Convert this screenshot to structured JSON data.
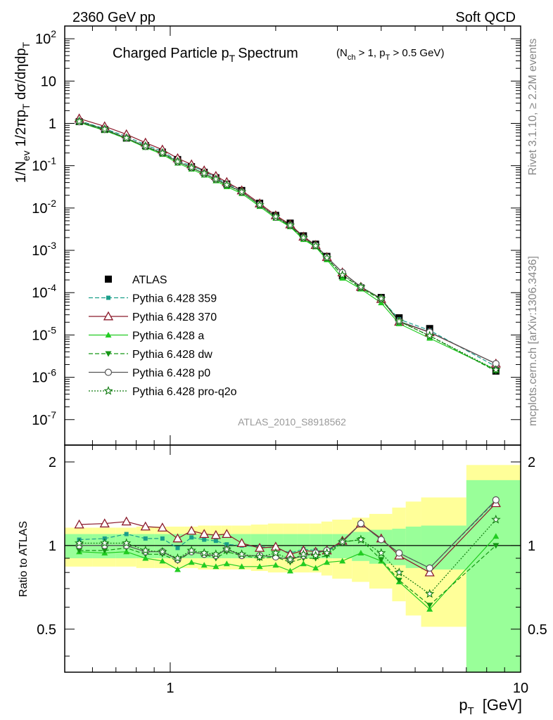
{
  "header": {
    "left": "2360 GeV pp",
    "right": "Soft QCD"
  },
  "side": {
    "top": "Rivet 3.1.10, ≥ 2.2M events",
    "bottom": "mcplots.cern.ch [arXiv:1306.3436]"
  },
  "watermark": "ATLAS_2010_S8918562",
  "colors": {
    "atlas": "#000000",
    "p359": "#1a9e8a",
    "p370": "#8b1a2b",
    "pa": "#22cc22",
    "pdw": "#149614",
    "pp0": "#555555",
    "pq2o": "#0f7a0f",
    "band_yellow": "#ffff99",
    "band_green": "#99ff99"
  },
  "chart_data": [
    {
      "type": "scatter",
      "title": "Charged Particle p_T Spectrum",
      "title_main": "Charged Particle p",
      "title_sub": "T",
      "title_tail": "Spectrum",
      "title_cut": "(N_ch > 1, p_T > 0.5 GeV)",
      "ylabel": "1/N_ev 1/2πp_T dσ/dηdp_T",
      "ylog": true,
      "ylim": [
        2.5e-08,
        200
      ],
      "xlog": true,
      "xlim": [
        0.5,
        10
      ],
      "ytick_labels": [
        "10^2",
        "10",
        "1",
        "10^-1",
        "10^-2",
        "10^-3",
        "10^-4",
        "10^-5",
        "10^-6",
        "10^-7"
      ],
      "legend_position": "lower-left",
      "x": [
        0.55,
        0.65,
        0.75,
        0.85,
        0.95,
        1.05,
        1.15,
        1.25,
        1.35,
        1.45,
        1.6,
        1.8,
        2.0,
        2.2,
        2.4,
        2.6,
        2.8,
        3.1,
        3.5,
        4.0,
        4.5,
        5.5,
        8.5
      ],
      "series": [
        {
          "name": "ATLAS",
          "key": "atlas",
          "marker": "square-filled",
          "values": [
            1.1,
            0.72,
            0.45,
            0.3,
            0.21,
            0.14,
            0.095,
            0.07,
            0.052,
            0.037,
            0.026,
            0.013,
            0.0067,
            0.0044,
            0.0022,
            0.0014,
            0.00072,
            0.00025,
            0.00013,
            7.7e-05,
            2.55e-05,
            1.42e-05,
            1.4e-06
          ]
        },
        {
          "name": "Pythia 6.428 359",
          "key": "p359",
          "marker": "square-small",
          "dash": "6,3",
          "values": [
            1.15,
            0.75,
            0.49,
            0.31,
            0.22,
            0.13,
            0.099,
            0.074,
            0.052,
            0.038,
            0.026,
            0.0128,
            0.0066,
            0.0041,
            0.0021,
            0.00135,
            0.00069,
            0.0003,
            0.000137,
            7e-05,
            2.35e-05,
            1.28e-05,
            1.8e-06
          ]
        },
        {
          "name": "Pythia 6.428 370",
          "key": "p370",
          "marker": "triangle-open",
          "values": [
            1.3,
            0.85,
            0.55,
            0.35,
            0.24,
            0.15,
            0.107,
            0.077,
            0.057,
            0.041,
            0.026,
            0.0128,
            0.0067,
            0.0041,
            0.0021,
            0.00133,
            0.00069,
            0.0003,
            0.000137,
            7.05e-05,
            2.05e-05,
            1.15e-05,
            2.1e-06
          ]
        },
        {
          "name": "Pythia 6.428 a",
          "key": "pa",
          "marker": "triangle-filled",
          "values": [
            1.05,
            0.68,
            0.43,
            0.27,
            0.185,
            0.115,
            0.083,
            0.06,
            0.044,
            0.032,
            0.022,
            0.0109,
            0.0057,
            0.0036,
            0.0018,
            0.00121,
            0.0006,
            0.00022,
            0.000122,
            5.75e-05,
            1.85e-05,
            8.4e-06,
            1.5e-06
          ]
        },
        {
          "name": "Pythia 6.428 dw",
          "key": "pdw",
          "marker": "triangle-down-filled",
          "dash": "6,3",
          "values": [
            1.06,
            0.69,
            0.44,
            0.28,
            0.195,
            0.123,
            0.09,
            0.065,
            0.047,
            0.035,
            0.024,
            0.0117,
            0.0061,
            0.0037,
            0.0019,
            0.00126,
            0.00064,
            0.00026,
            0.000128,
            6.85e-05,
            2.1e-05,
            9.5e-06,
            1.4e-06
          ]
        },
        {
          "name": "Pythia 6.428 p0",
          "key": "pp0",
          "marker": "circle-open",
          "values": [
            1.1,
            0.72,
            0.45,
            0.285,
            0.2,
            0.124,
            0.09,
            0.065,
            0.048,
            0.036,
            0.024,
            0.012,
            0.0061,
            0.0039,
            0.002,
            0.00131,
            0.00069,
            0.0003,
            0.000137,
            7.25e-05,
            2.11e-05,
            1.17e-05,
            2.1e-06
          ]
        },
        {
          "name": "Pythia 6.428 pro-q2o",
          "key": "pq2o",
          "marker": "star-open",
          "dash": "2,2",
          "values": [
            1.12,
            0.73,
            0.45,
            0.29,
            0.2,
            0.125,
            0.09,
            0.066,
            0.048,
            0.035,
            0.024,
            0.0118,
            0.0063,
            0.0039,
            0.002,
            0.00128,
            0.00066,
            0.00026,
            0.000136,
            7.25e-05,
            2.1e-05,
            9.6e-06,
            1.5e-06
          ]
        }
      ]
    },
    {
      "type": "line",
      "ylabel": "Ratio to ATLAS",
      "xlabel": "p_T [GeV]",
      "xlabel_main": "p",
      "xlabel_sub": "T",
      "xlabel_unit": "[GeV]",
      "xlog": true,
      "xlim": [
        0.5,
        10
      ],
      "ylog": true,
      "ylim": [
        0.35,
        2.3
      ],
      "ytick_labels": [
        "2",
        "1",
        "0.5"
      ],
      "xtick_labels": [
        "1",
        "10"
      ],
      "bands": {
        "x_edges": [
          0.5,
          0.6,
          0.7,
          0.8,
          0.9,
          1.0,
          1.1,
          1.2,
          1.3,
          1.4,
          1.5,
          1.7,
          1.9,
          2.1,
          2.3,
          2.5,
          2.7,
          2.9,
          3.3,
          3.7,
          4.3,
          4.7,
          5.2,
          7.0,
          10.0
        ],
        "stat_total": [
          0.1,
          0.1,
          0.1,
          0.1,
          0.1,
          0.1,
          0.1,
          0.1,
          0.1,
          0.1,
          0.1,
          0.1,
          0.1,
          0.1,
          0.1,
          0.1,
          0.1,
          0.1,
          0.12,
          0.14,
          0.15,
          0.17,
          0.18,
          0.72
        ],
        "syst_total": [
          0.16,
          0.16,
          0.16,
          0.17,
          0.17,
          0.17,
          0.17,
          0.18,
          0.18,
          0.18,
          0.18,
          0.19,
          0.2,
          0.2,
          0.2,
          0.2,
          0.22,
          0.24,
          0.26,
          0.3,
          0.37,
          0.44,
          0.49,
          0.95
        ]
      },
      "series": [
        {
          "name": "Pythia 6.428 359",
          "key": "p359",
          "values": [
            1.05,
            1.06,
            1.1,
            1.06,
            1.06,
            0.98,
            1.07,
            1.05,
            1.04,
            1.01,
            1.0,
            0.99,
            0.98,
            0.94,
            0.97,
            0.96,
            0.95,
            1.03,
            1.2,
            1.05,
            0.94,
            0.83,
            1.45
          ]
        },
        {
          "name": "Pythia 6.428 370",
          "key": "p370",
          "values": [
            1.19,
            1.2,
            1.22,
            1.17,
            1.16,
            1.06,
            1.13,
            1.1,
            1.09,
            1.1,
            1.02,
            0.98,
            0.99,
            0.93,
            0.96,
            0.95,
            0.96,
            1.04,
            1.2,
            1.06,
            0.92,
            0.8,
            1.42
          ]
        },
        {
          "name": "Pythia 6.428 a",
          "key": "pa",
          "values": [
            0.95,
            0.94,
            0.95,
            0.9,
            0.88,
            0.82,
            0.87,
            0.85,
            0.84,
            0.86,
            0.84,
            0.84,
            0.85,
            0.81,
            0.86,
            0.83,
            0.87,
            0.88,
            0.94,
            0.88,
            0.74,
            0.59,
            1.08
          ]
        },
        {
          "name": "Pythia 6.428 dw",
          "key": "pdw",
          "values": [
            0.96,
            0.96,
            0.98,
            0.93,
            0.93,
            0.88,
            0.95,
            0.93,
            0.9,
            0.95,
            0.92,
            0.9,
            0.91,
            0.87,
            0.9,
            0.9,
            0.92,
            1.03,
            1.05,
            0.89,
            0.75,
            0.61,
            1.0
          ]
        },
        {
          "name": "Pythia 6.428 p0",
          "key": "pp0",
          "values": [
            1.0,
            1.0,
            1.0,
            0.95,
            0.95,
            0.89,
            0.95,
            0.93,
            0.92,
            0.97,
            0.92,
            0.92,
            0.91,
            0.89,
            0.92,
            0.94,
            0.96,
            1.03,
            1.2,
            1.05,
            0.94,
            0.83,
            1.46
          ]
        },
        {
          "name": "Pythia 6.428 pro-q2o",
          "key": "pq2o",
          "values": [
            1.02,
            1.02,
            1.02,
            0.96,
            0.95,
            0.9,
            0.96,
            0.94,
            0.93,
            0.97,
            0.93,
            0.91,
            0.94,
            0.89,
            0.93,
            0.92,
            0.94,
            1.03,
            1.05,
            0.94,
            0.8,
            0.67,
            1.24
          ]
        }
      ]
    }
  ]
}
